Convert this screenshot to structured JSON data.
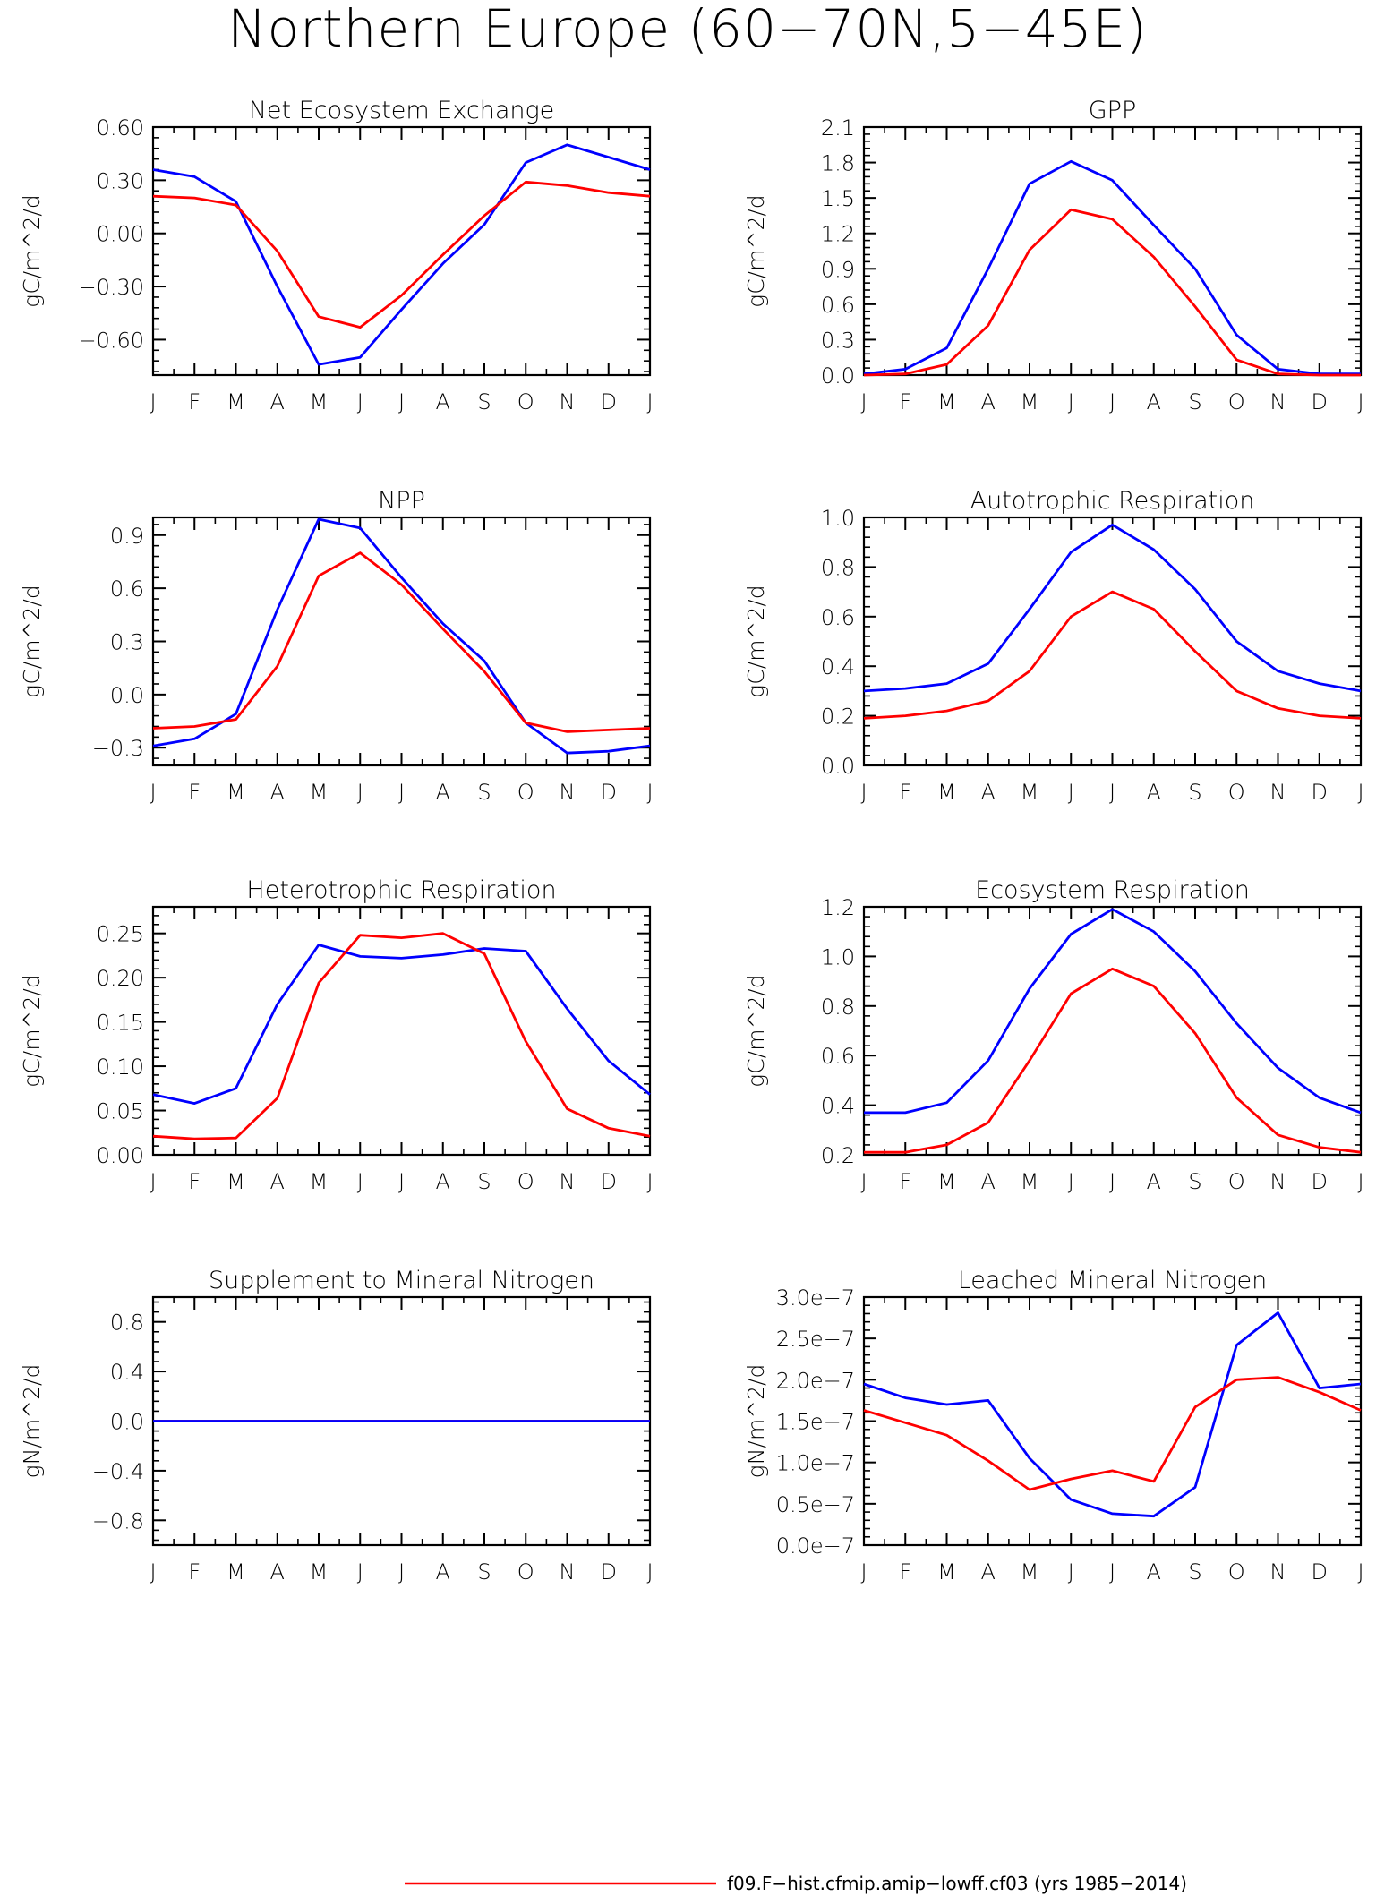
{
  "title": "Northern Europe (60−70N,5−45E)",
  "colors": {
    "model": "#ff0000",
    "reference": "#0000ff",
    "axis": "#000000"
  },
  "months": [
    "J",
    "F",
    "M",
    "A",
    "M",
    "J",
    "J",
    "A",
    "S",
    "O",
    "N",
    "D",
    "J"
  ],
  "legend": {
    "entries": [
      {
        "label": "f09.F−hist.cfmip.amip−lowff.cf03 (yrs 1985−2014)",
        "color": "#ff0000"
      }
    ]
  },
  "chart_data": [
    {
      "type": "line",
      "title": "Net Ecosystem Exchange",
      "ylabel": "gC/m^2/d",
      "ylim": [
        -0.8,
        0.6
      ],
      "yticks": [
        0.6,
        0.3,
        0.0,
        -0.3,
        -0.6
      ],
      "yticklabels": [
        "0.60",
        "0.30",
        "0.00",
        "−0.30",
        "−0.60"
      ],
      "series": [
        {
          "color": "#0000ff",
          "values": [
            0.36,
            0.32,
            0.18,
            -0.3,
            -0.74,
            -0.7,
            -0.43,
            -0.17,
            0.05,
            0.4,
            0.5,
            0.43,
            0.36
          ]
        },
        {
          "color": "#ff0000",
          "values": [
            0.21,
            0.2,
            0.16,
            -0.1,
            -0.47,
            -0.53,
            -0.35,
            -0.12,
            0.1,
            0.29,
            0.27,
            0.23,
            0.21
          ]
        }
      ]
    },
    {
      "type": "line",
      "title": "GPP",
      "ylabel": "gC/m^2/d",
      "ylim": [
        0.0,
        2.1
      ],
      "yticks": [
        2.1,
        1.8,
        1.5,
        1.2,
        0.9,
        0.6,
        0.3,
        0.0
      ],
      "yticklabels": [
        "2.1",
        "1.8",
        "1.5",
        "1.2",
        "0.9",
        "0.6",
        "0.3",
        "0.0"
      ],
      "series": [
        {
          "color": "#0000ff",
          "values": [
            0.01,
            0.05,
            0.23,
            0.9,
            1.62,
            1.81,
            1.65,
            1.27,
            0.9,
            0.34,
            0.05,
            0.01,
            0.01
          ]
        },
        {
          "color": "#ff0000",
          "values": [
            0.0,
            0.01,
            0.09,
            0.42,
            1.06,
            1.4,
            1.32,
            1.0,
            0.58,
            0.13,
            0.01,
            0.0,
            0.0
          ]
        }
      ]
    },
    {
      "type": "line",
      "title": "NPP",
      "ylabel": "gC/m^2/d",
      "ylim": [
        -0.4,
        1.0
      ],
      "yticks": [
        0.9,
        0.6,
        0.3,
        0.0,
        -0.3
      ],
      "yticklabels": [
        "0.9",
        "0.6",
        "0.3",
        "0.0",
        "−0.3"
      ],
      "series": [
        {
          "color": "#0000ff",
          "values": [
            -0.29,
            -0.25,
            -0.11,
            0.48,
            0.99,
            0.94,
            0.66,
            0.4,
            0.19,
            -0.16,
            -0.33,
            -0.32,
            -0.29
          ]
        },
        {
          "color": "#ff0000",
          "values": [
            -0.19,
            -0.18,
            -0.14,
            0.16,
            0.67,
            0.8,
            0.62,
            0.37,
            0.13,
            -0.16,
            -0.21,
            -0.2,
            -0.19
          ]
        }
      ]
    },
    {
      "type": "line",
      "title": "Autotrophic Respiration",
      "ylabel": "gC/m^2/d",
      "ylim": [
        0.0,
        1.0
      ],
      "yticks": [
        1.0,
        0.8,
        0.6,
        0.4,
        0.2,
        0.0
      ],
      "yticklabels": [
        "1.0",
        "0.8",
        "0.6",
        "0.4",
        "0.2",
        "0.0"
      ],
      "series": [
        {
          "color": "#0000ff",
          "values": [
            0.3,
            0.31,
            0.33,
            0.41,
            0.63,
            0.86,
            0.97,
            0.87,
            0.71,
            0.5,
            0.38,
            0.33,
            0.3
          ]
        },
        {
          "color": "#ff0000",
          "values": [
            0.19,
            0.2,
            0.22,
            0.26,
            0.38,
            0.6,
            0.7,
            0.63,
            0.46,
            0.3,
            0.23,
            0.2,
            0.19
          ]
        }
      ]
    },
    {
      "type": "line",
      "title": "Heterotrophic Respiration",
      "ylabel": "gC/m^2/d",
      "ylim": [
        0.0,
        0.28
      ],
      "yticks": [
        0.25,
        0.2,
        0.15,
        0.1,
        0.05,
        0.0
      ],
      "yticklabels": [
        "0.25",
        "0.20",
        "0.15",
        "0.10",
        "0.05",
        "0.00"
      ],
      "series": [
        {
          "color": "#0000ff",
          "values": [
            0.068,
            0.058,
            0.075,
            0.17,
            0.237,
            0.224,
            0.222,
            0.226,
            0.233,
            0.23,
            0.165,
            0.106,
            0.068
          ]
        },
        {
          "color": "#ff0000",
          "values": [
            0.021,
            0.018,
            0.019,
            0.064,
            0.194,
            0.248,
            0.245,
            0.25,
            0.227,
            0.128,
            0.052,
            0.03,
            0.021
          ]
        }
      ]
    },
    {
      "type": "line",
      "title": "Ecosystem Respiration",
      "ylabel": "gC/m^2/d",
      "ylim": [
        0.2,
        1.2
      ],
      "yticks": [
        1.2,
        1.0,
        0.8,
        0.6,
        0.4,
        0.2
      ],
      "yticklabels": [
        "1.2",
        "1.0",
        "0.8",
        "0.6",
        "0.4",
        "0.2"
      ],
      "series": [
        {
          "color": "#0000ff",
          "values": [
            0.37,
            0.37,
            0.41,
            0.58,
            0.87,
            1.09,
            1.19,
            1.1,
            0.94,
            0.73,
            0.55,
            0.43,
            0.37
          ]
        },
        {
          "color": "#ff0000",
          "values": [
            0.21,
            0.21,
            0.24,
            0.33,
            0.58,
            0.85,
            0.95,
            0.88,
            0.69,
            0.43,
            0.28,
            0.23,
            0.21
          ]
        }
      ]
    },
    {
      "type": "line",
      "title": "Supplement to Mineral Nitrogen",
      "ylabel": "gN/m^2/d",
      "ylim": [
        -1.0,
        1.0
      ],
      "yticks": [
        0.8,
        0.4,
        0.0,
        -0.4,
        -0.8
      ],
      "yticklabels": [
        "0.8",
        "0.4",
        "0.0",
        "−0.4",
        "−0.8"
      ],
      "series": [
        {
          "color": "#ff0000",
          "values": [
            0,
            0,
            0,
            0,
            0,
            0,
            0,
            0,
            0,
            0,
            0,
            0,
            0
          ]
        },
        {
          "color": "#0000ff",
          "values": [
            0,
            0,
            0,
            0,
            0,
            0,
            0,
            0,
            0,
            0,
            0,
            0,
            0
          ]
        }
      ]
    },
    {
      "type": "line",
      "title": "Leached Mineral Nitrogen",
      "ylabel": "gN/m^2/d",
      "ylim": [
        0.0,
        3e-07
      ],
      "yticks": [
        3e-07,
        2.5e-07,
        2e-07,
        1.5e-07,
        1e-07,
        5e-08,
        0.0
      ],
      "yticklabels": [
        "3.0e−7",
        "2.5e−7",
        "2.0e−7",
        "1.5e−7",
        "1.0e−7",
        "0.5e−7",
        "0.0e−7"
      ],
      "series": [
        {
          "color": "#0000ff",
          "values": [
            1.95e-07,
            1.78e-07,
            1.7e-07,
            1.75e-07,
            1.05e-07,
            5.5e-08,
            3.8e-08,
            3.5e-08,
            7e-08,
            2.42e-07,
            2.81e-07,
            1.9e-07,
            1.95e-07
          ]
        },
        {
          "color": "#ff0000",
          "values": [
            1.63e-07,
            1.48e-07,
            1.33e-07,
            1.02e-07,
            6.7e-08,
            8e-08,
            9e-08,
            7.7e-08,
            1.67e-07,
            2e-07,
            2.03e-07,
            1.85e-07,
            1.63e-07
          ]
        }
      ]
    }
  ]
}
